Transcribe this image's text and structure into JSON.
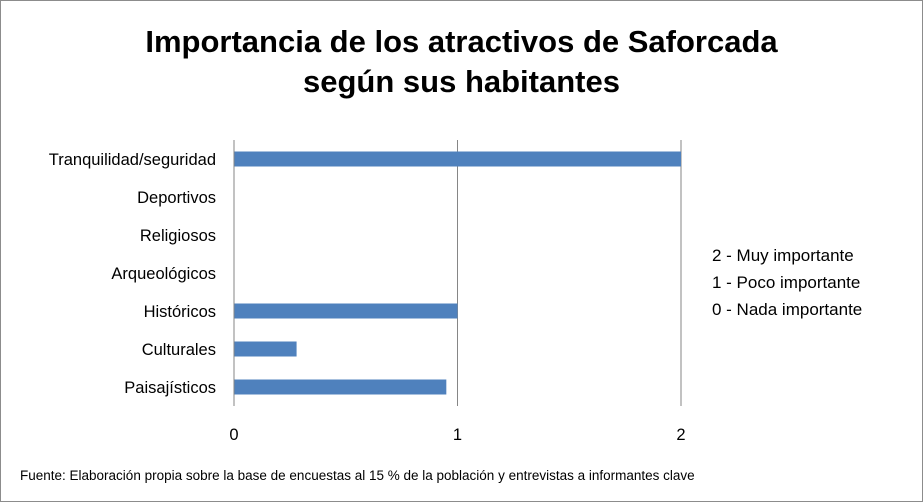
{
  "chart_data": {
    "type": "bar",
    "orientation": "horizontal",
    "title": [
      "Importancia de los atractivos de Saforcada",
      "según sus habitantes"
    ],
    "categories": [
      "Tranquilidad/seguridad",
      "Deportivos",
      "Religiosos",
      "Arqueológicos",
      "Históricos",
      "Culturales",
      "Paisajísticos"
    ],
    "values": [
      2,
      0,
      0,
      0,
      1,
      0.28,
      0.95
    ],
    "xlim": [
      0,
      2
    ],
    "xticks": [
      "0",
      "1",
      "2"
    ],
    "grid": "vertical",
    "bar_color": "#4f81bd",
    "legend_text": [
      "2 - Muy importante",
      "1 - Poco importante",
      "0 - Nada importante"
    ],
    "legend_placement": "right"
  },
  "source": "Fuente: Elaboración propia sobre la base de encuestas al 15 % de la población y entrevistas a informantes clave"
}
